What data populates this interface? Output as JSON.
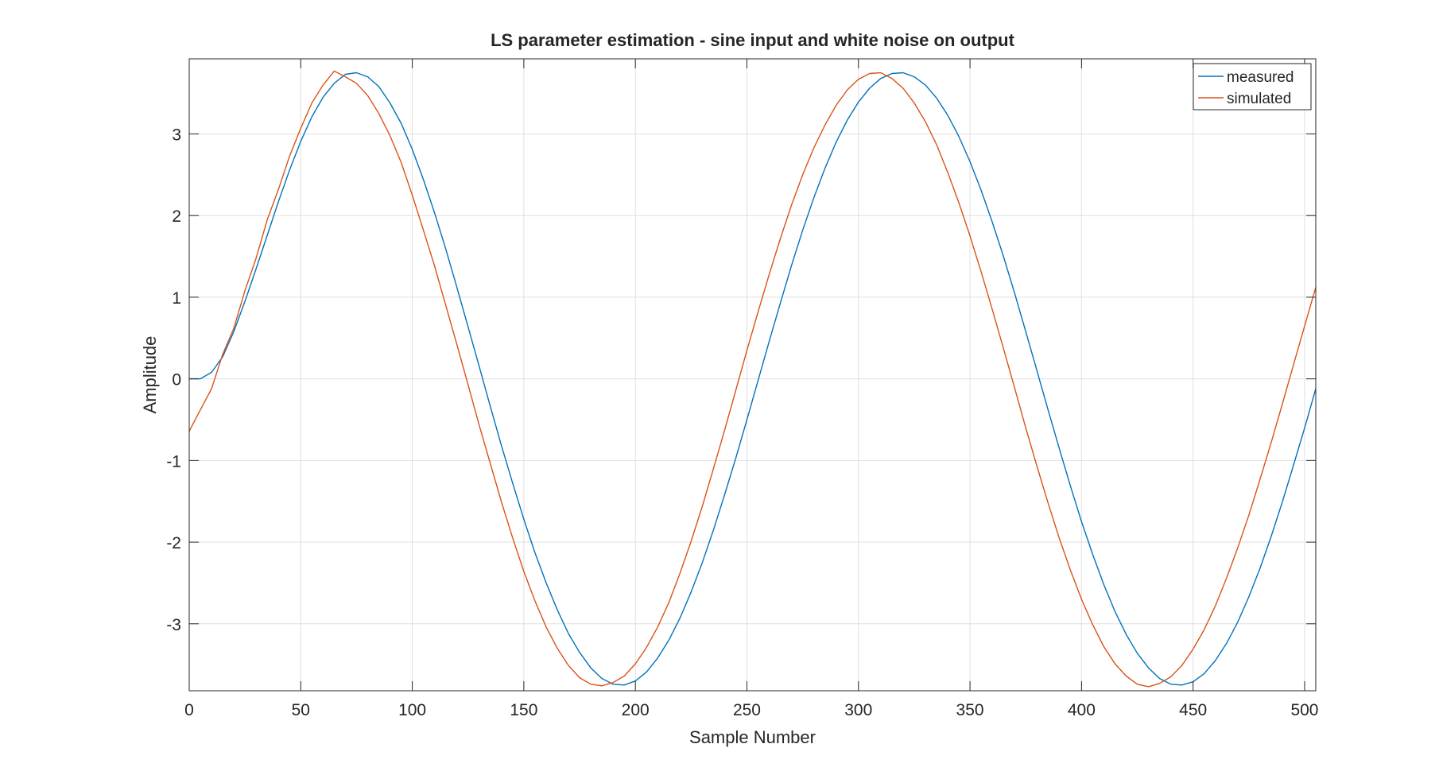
{
  "chart_data": {
    "type": "line",
    "title": "LS parameter estimation - sine input and white noise on output",
    "xlabel": "Sample Number",
    "ylabel": "Amplitude",
    "xlim": [
      0,
      505
    ],
    "ylim": [
      -3.82,
      3.92
    ],
    "xticks": [
      0,
      50,
      100,
      150,
      200,
      250,
      300,
      350,
      400,
      450,
      500
    ],
    "yticks": [
      -3,
      -2,
      -1,
      0,
      1,
      2,
      3
    ],
    "xtick_labels": [
      "0",
      "50",
      "100",
      "150",
      "200",
      "250",
      "300",
      "350",
      "400",
      "450",
      "500"
    ],
    "ytick_labels": [
      "-3",
      "-2",
      "-1",
      "0",
      "1",
      "2",
      "3"
    ],
    "grid": true,
    "legend_position": "top-right",
    "series": [
      {
        "name": "measured",
        "color": "#0072BD",
        "x": [
          0,
          5,
          10,
          15,
          20,
          25,
          30,
          35,
          40,
          45,
          50,
          55,
          60,
          65,
          70,
          75,
          80,
          85,
          90,
          95,
          100,
          105,
          110,
          115,
          120,
          125,
          130,
          135,
          140,
          145,
          150,
          155,
          160,
          165,
          170,
          175,
          180,
          185,
          190,
          195,
          200,
          205,
          210,
          215,
          220,
          225,
          230,
          235,
          240,
          245,
          250,
          255,
          260,
          265,
          270,
          275,
          280,
          285,
          290,
          295,
          300,
          305,
          310,
          315,
          320,
          325,
          330,
          335,
          340,
          345,
          350,
          355,
          360,
          365,
          370,
          375,
          380,
          385,
          390,
          395,
          400,
          405,
          410,
          415,
          420,
          425,
          430,
          435,
          440,
          445,
          450,
          455,
          460,
          465,
          470,
          475,
          480,
          485,
          490,
          495,
          500,
          505
        ],
        "y": [
          0.0,
          0.0,
          0.08,
          0.27,
          0.58,
          0.95,
          1.35,
          1.76,
          2.17,
          2.56,
          2.91,
          3.21,
          3.45,
          3.62,
          3.73,
          3.75,
          3.7,
          3.58,
          3.38,
          3.13,
          2.81,
          2.44,
          2.03,
          1.59,
          1.12,
          0.64,
          0.15,
          -0.34,
          -0.82,
          -1.28,
          -1.72,
          -2.13,
          -2.5,
          -2.83,
          -3.12,
          -3.35,
          -3.54,
          -3.67,
          -3.74,
          -3.75,
          -3.7,
          -3.59,
          -3.42,
          -3.2,
          -2.93,
          -2.61,
          -2.25,
          -1.85,
          -1.42,
          -0.97,
          -0.5,
          -0.02,
          0.46,
          0.93,
          1.39,
          1.82,
          2.22,
          2.58,
          2.9,
          3.17,
          3.39,
          3.56,
          3.68,
          3.74,
          3.75,
          3.7,
          3.6,
          3.44,
          3.23,
          2.97,
          2.66,
          2.31,
          1.92,
          1.5,
          1.05,
          0.58,
          0.1,
          -0.38,
          -0.85,
          -1.31,
          -1.75,
          -2.15,
          -2.52,
          -2.85,
          -3.13,
          -3.36,
          -3.54,
          -3.67,
          -3.74,
          -3.75,
          -3.71,
          -3.61,
          -3.45,
          -3.24,
          -2.98,
          -2.67,
          -2.32,
          -1.93,
          -1.51,
          -1.06,
          -0.6,
          -0.12
        ]
      },
      {
        "name": "simulated",
        "color": "#D95319",
        "x": [
          0,
          5,
          10,
          15,
          20,
          25,
          30,
          35,
          40,
          45,
          50,
          55,
          60,
          65,
          70,
          75,
          80,
          85,
          90,
          95,
          100,
          105,
          110,
          115,
          120,
          125,
          130,
          135,
          140,
          145,
          150,
          155,
          160,
          165,
          170,
          175,
          180,
          185,
          190,
          195,
          200,
          205,
          210,
          215,
          220,
          225,
          230,
          235,
          240,
          245,
          250,
          255,
          260,
          265,
          270,
          275,
          280,
          285,
          290,
          295,
          300,
          305,
          310,
          315,
          320,
          325,
          330,
          335,
          340,
          345,
          350,
          355,
          360,
          365,
          370,
          375,
          380,
          385,
          390,
          395,
          400,
          405,
          410,
          415,
          420,
          425,
          430,
          435,
          440,
          445,
          450,
          455,
          460,
          465,
          470,
          475,
          480,
          485,
          490,
          495,
          500,
          505
        ],
        "y": [
          -0.64,
          -0.38,
          -0.12,
          0.3,
          0.62,
          1.08,
          1.48,
          1.95,
          2.32,
          2.73,
          3.07,
          3.38,
          3.6,
          3.77,
          3.7,
          3.62,
          3.47,
          3.25,
          2.98,
          2.65,
          2.25,
          1.82,
          1.38,
          0.9,
          0.42,
          -0.07,
          -0.57,
          -1.04,
          -1.51,
          -1.95,
          -2.36,
          -2.72,
          -3.04,
          -3.3,
          -3.51,
          -3.66,
          -3.74,
          -3.76,
          -3.72,
          -3.64,
          -3.49,
          -3.29,
          -3.04,
          -2.74,
          -2.38,
          -1.99,
          -1.56,
          -1.1,
          -0.63,
          -0.14,
          0.35,
          0.82,
          1.28,
          1.72,
          2.13,
          2.5,
          2.83,
          3.11,
          3.35,
          3.54,
          3.67,
          3.74,
          3.75,
          3.68,
          3.56,
          3.38,
          3.15,
          2.87,
          2.53,
          2.16,
          1.75,
          1.31,
          0.85,
          0.37,
          -0.11,
          -0.6,
          -1.07,
          -1.52,
          -1.95,
          -2.34,
          -2.7,
          -3.01,
          -3.28,
          -3.49,
          -3.64,
          -3.74,
          -3.77,
          -3.73,
          -3.65,
          -3.51,
          -3.31,
          -3.07,
          -2.78,
          -2.44,
          -2.07,
          -1.67,
          -1.23,
          -0.78,
          -0.31,
          0.17,
          0.65,
          1.12
        ]
      }
    ]
  }
}
